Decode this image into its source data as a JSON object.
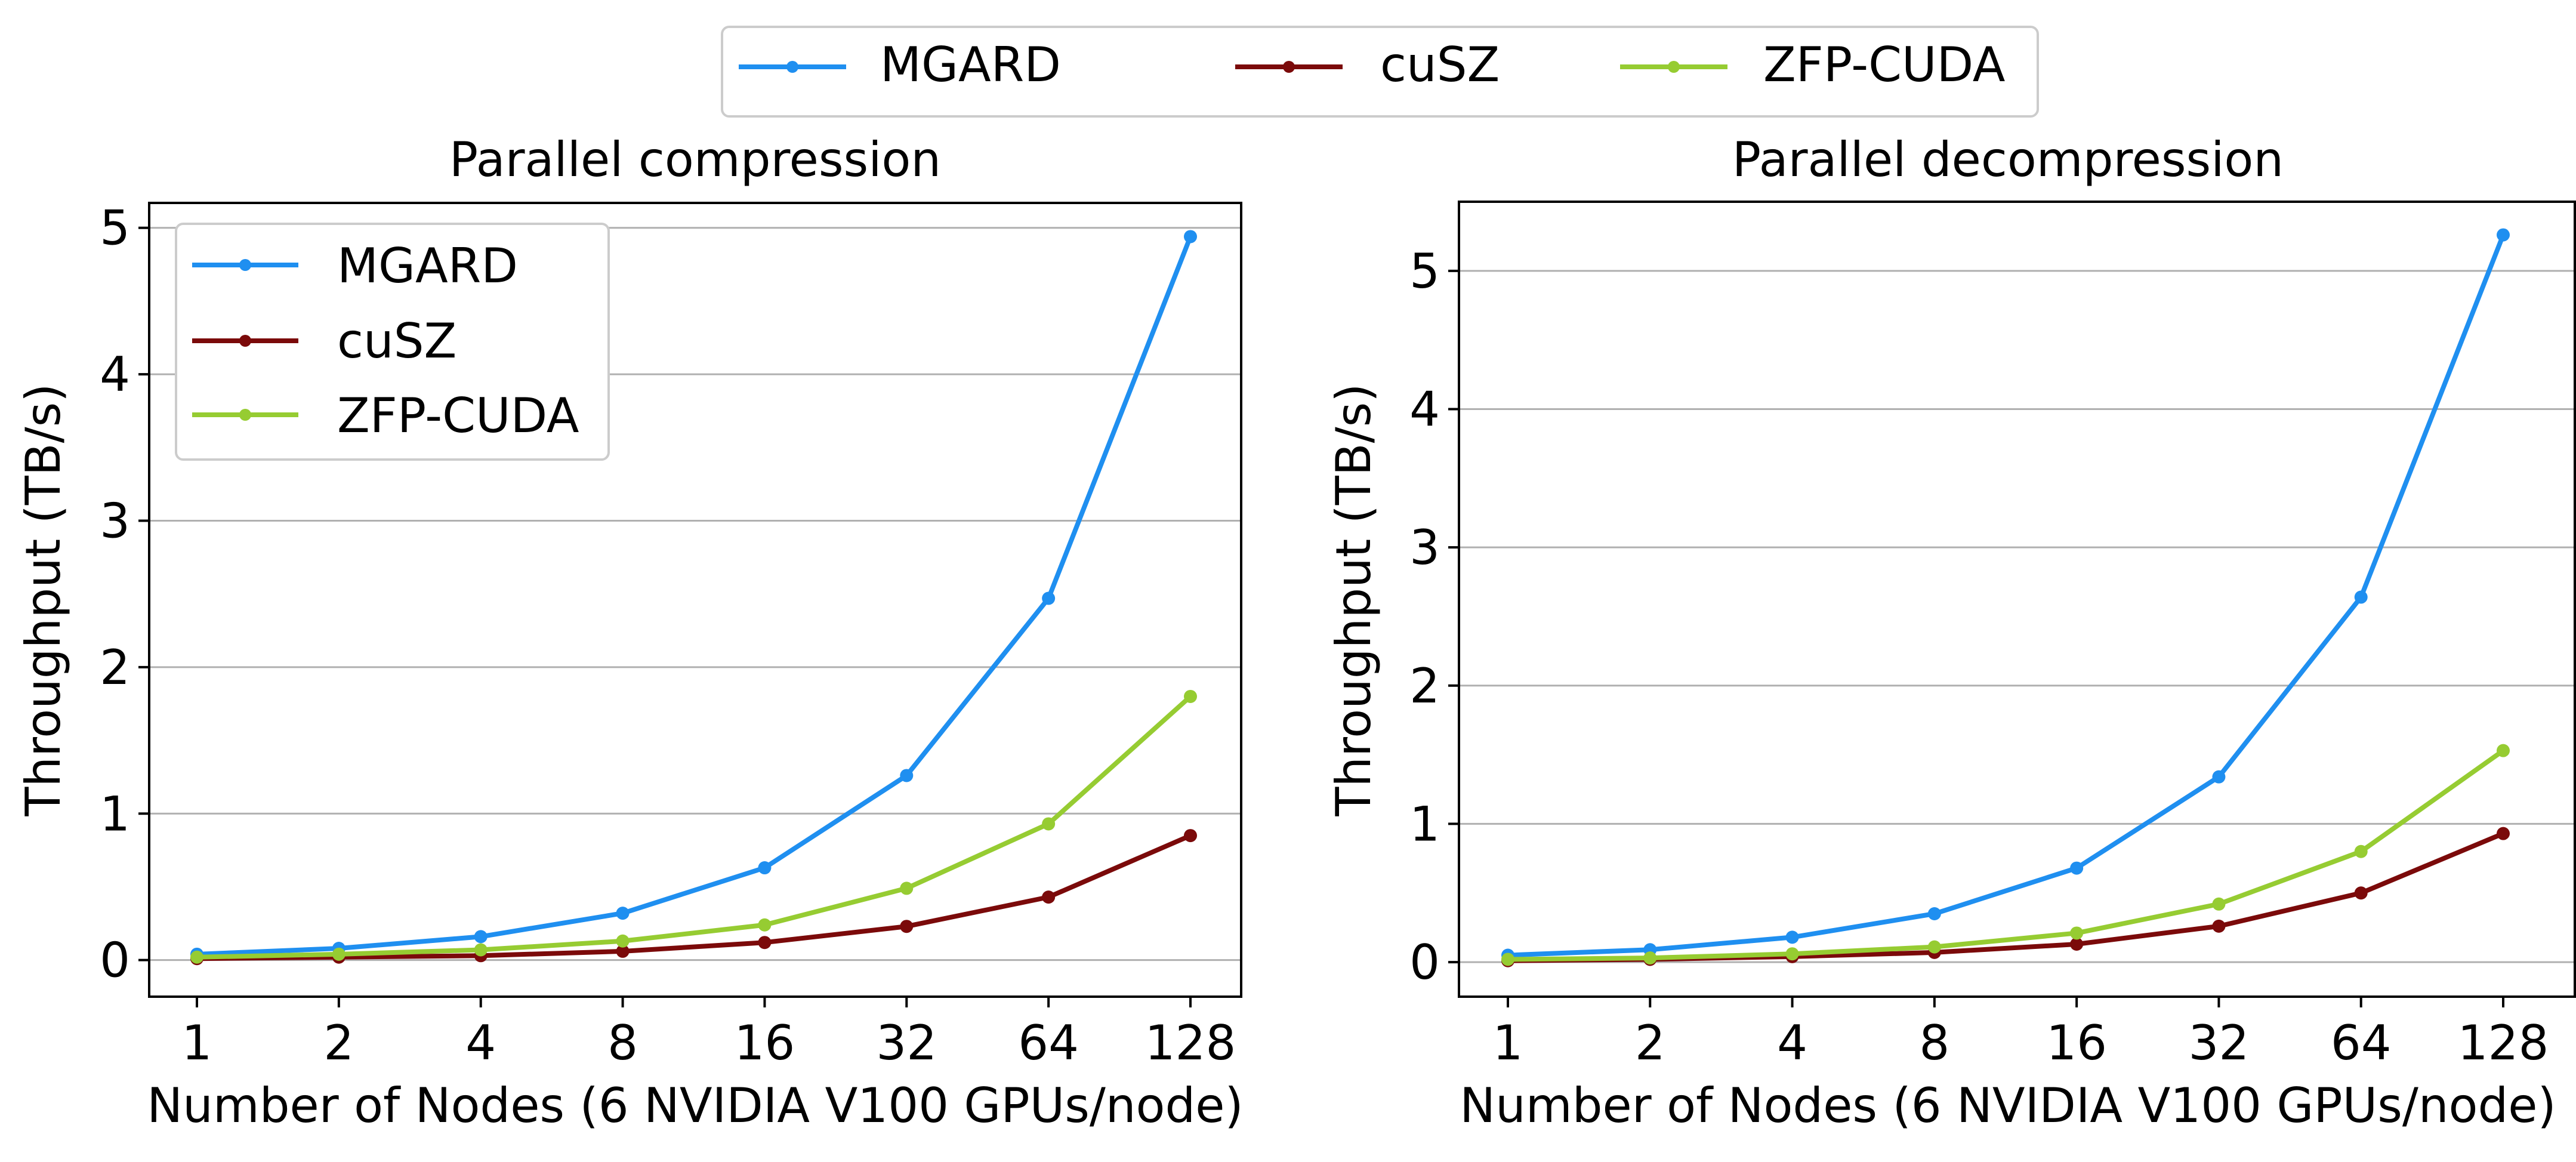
{
  "chart_data": [
    {
      "type": "line",
      "title": "Parallel compression",
      "xlabel": "Number of Nodes (6 NVIDIA V100 GPUs/node)",
      "ylabel": "Throughput (TB/s)",
      "categories": [
        "1",
        "2",
        "4",
        "8",
        "16",
        "32",
        "64",
        "128"
      ],
      "ylim": [
        -0.25,
        5.17
      ],
      "yticks": [
        0,
        1,
        2,
        3,
        4,
        5
      ],
      "grid": "y",
      "legend": "top-left",
      "series": [
        {
          "name": "MGARD",
          "color": "#1f8ff0",
          "values": [
            0.04,
            0.08,
            0.16,
            0.32,
            0.63,
            1.26,
            2.47,
            4.94
          ]
        },
        {
          "name": "cuSZ",
          "color": "#7b0a0a",
          "values": [
            0.01,
            0.02,
            0.03,
            0.06,
            0.12,
            0.23,
            0.43,
            0.85
          ]
        },
        {
          "name": "ZFP-CUDA",
          "color": "#96cc32",
          "values": [
            0.02,
            0.04,
            0.07,
            0.13,
            0.24,
            0.49,
            0.93,
            1.8
          ]
        }
      ]
    },
    {
      "type": "line",
      "title": "Parallel decompression",
      "xlabel": "Number of Nodes (6 NVIDIA V100 GPUs/node)",
      "ylabel": "Throughput (TB/s)",
      "categories": [
        "1",
        "2",
        "4",
        "8",
        "16",
        "32",
        "64",
        "128"
      ],
      "ylim": [
        -0.25,
        5.5
      ],
      "yticks": [
        0,
        1,
        2,
        3,
        4,
        5
      ],
      "grid": "y",
      "legend": "none",
      "series": [
        {
          "name": "MGARD",
          "color": "#1f8ff0",
          "values": [
            0.05,
            0.09,
            0.18,
            0.35,
            0.68,
            1.34,
            2.64,
            5.26
          ]
        },
        {
          "name": "cuSZ",
          "color": "#7b0a0a",
          "values": [
            0.01,
            0.02,
            0.04,
            0.07,
            0.13,
            0.26,
            0.5,
            0.93
          ]
        },
        {
          "name": "ZFP-CUDA",
          "color": "#96cc32",
          "values": [
            0.02,
            0.03,
            0.06,
            0.11,
            0.21,
            0.42,
            0.8,
            1.53
          ]
        }
      ]
    }
  ],
  "figure_legend": {
    "entries": [
      "MGARD",
      "cuSZ",
      "ZFP-CUDA"
    ]
  }
}
